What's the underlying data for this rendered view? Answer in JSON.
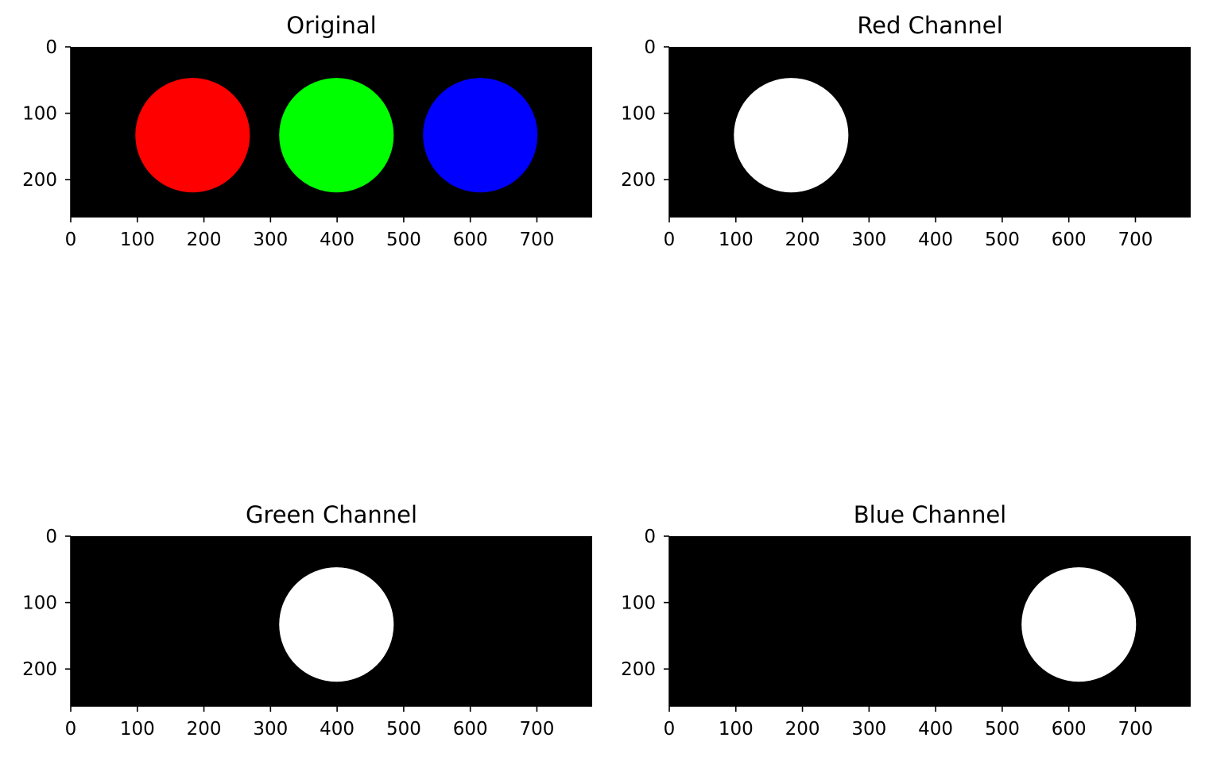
{
  "chart_data": [
    {
      "type": "image",
      "title": "Original",
      "xlim": [
        0,
        783
      ],
      "ylim": [
        256,
        0
      ],
      "x_ticks": [
        "0",
        "100",
        "200",
        "300",
        "400",
        "500",
        "600",
        "700"
      ],
      "y_ticks": [
        "0",
        "100",
        "200"
      ],
      "background": "#000000",
      "circles": [
        {
          "cx": 183,
          "cy": 133,
          "r": 86,
          "color": "#ff0000"
        },
        {
          "cx": 399,
          "cy": 133,
          "r": 86,
          "color": "#00ff00"
        },
        {
          "cx": 615,
          "cy": 133,
          "r": 86,
          "color": "#0000ff"
        }
      ]
    },
    {
      "type": "image",
      "title": "Red Channel",
      "xlim": [
        0,
        783
      ],
      "ylim": [
        256,
        0
      ],
      "x_ticks": [
        "0",
        "100",
        "200",
        "300",
        "400",
        "500",
        "600",
        "700"
      ],
      "y_ticks": [
        "0",
        "100",
        "200"
      ],
      "background": "#000000",
      "circles": [
        {
          "cx": 183,
          "cy": 133,
          "r": 86,
          "color": "#ffffff"
        }
      ]
    },
    {
      "type": "image",
      "title": "Green Channel",
      "xlim": [
        0,
        783
      ],
      "ylim": [
        256,
        0
      ],
      "x_ticks": [
        "0",
        "100",
        "200",
        "300",
        "400",
        "500",
        "600",
        "700"
      ],
      "y_ticks": [
        "0",
        "100",
        "200"
      ],
      "background": "#000000",
      "circles": [
        {
          "cx": 399,
          "cy": 133,
          "r": 86,
          "color": "#ffffff"
        }
      ]
    },
    {
      "type": "image",
      "title": "Blue Channel",
      "xlim": [
        0,
        783
      ],
      "ylim": [
        256,
        0
      ],
      "x_ticks": [
        "0",
        "100",
        "200",
        "300",
        "400",
        "500",
        "600",
        "700"
      ],
      "y_ticks": [
        "0",
        "100",
        "200"
      ],
      "background": "#000000",
      "circles": [
        {
          "cx": 615,
          "cy": 133,
          "r": 86,
          "color": "#ffffff"
        }
      ]
    }
  ]
}
